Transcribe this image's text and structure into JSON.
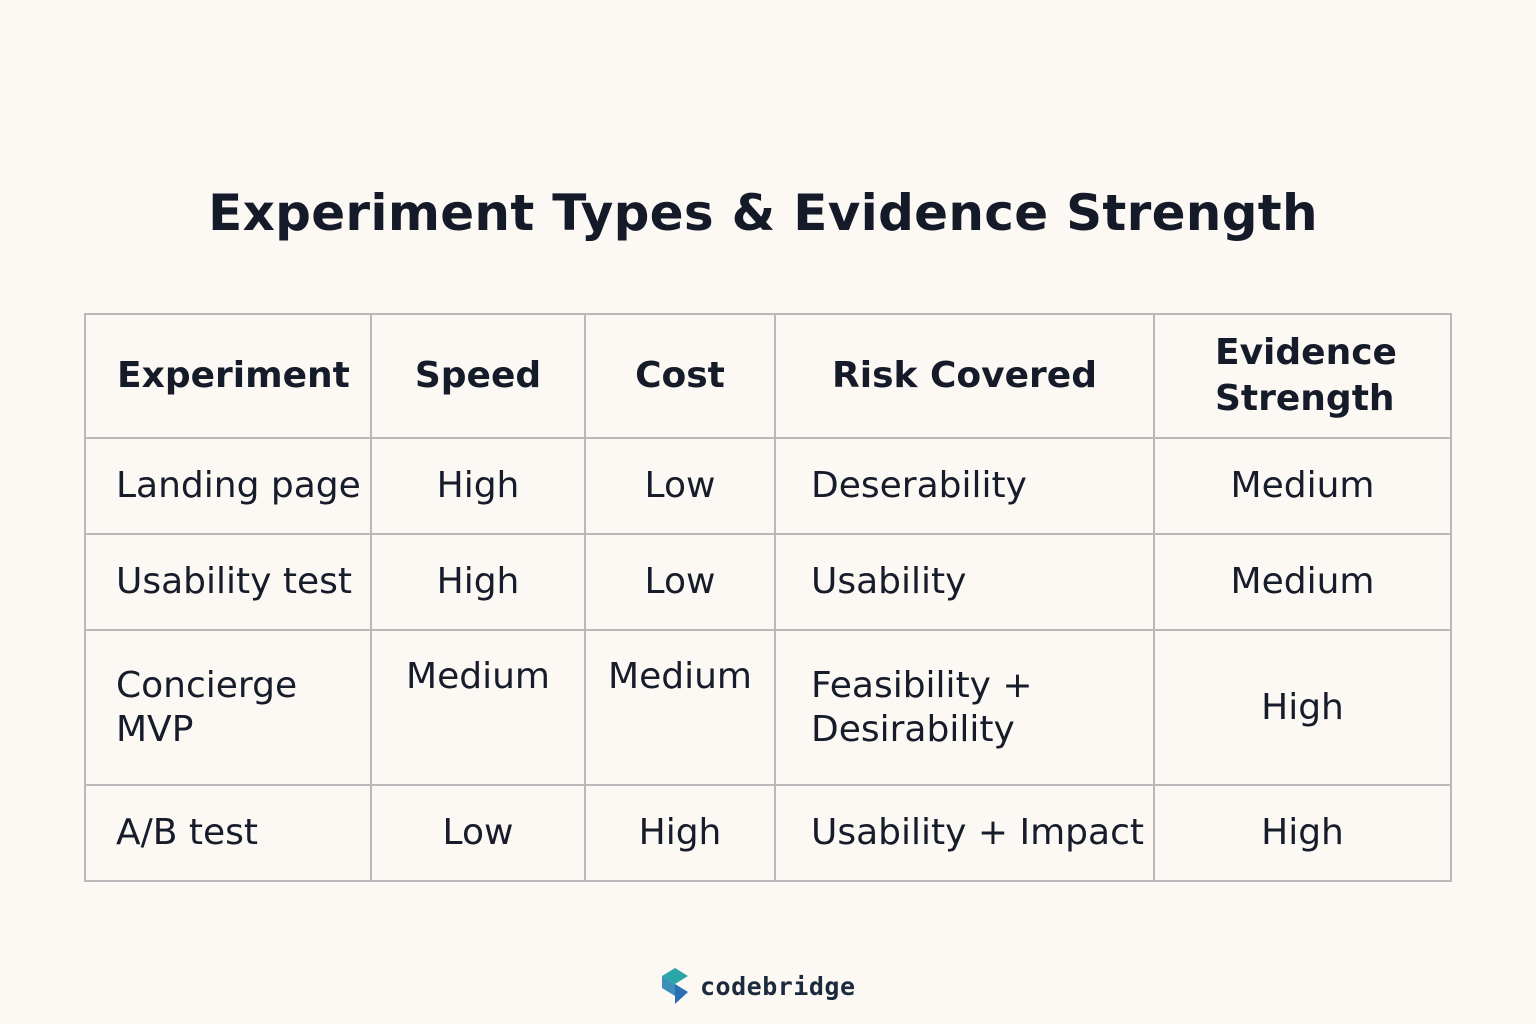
{
  "title": "Experiment Types & Evidence Strength",
  "table": {
    "headers": {
      "experiment": "Experiment",
      "speed": "Speed",
      "cost": "Cost",
      "risk": "Risk Covered",
      "evidence_line1": "Evidence",
      "evidence_line2": "Strength"
    },
    "rows": [
      {
        "experiment_line1": "Landing page",
        "experiment_line2": "",
        "speed": "High",
        "cost": "Low",
        "risk_line1": "Deserability",
        "risk_line2": "",
        "evidence": "Medium"
      },
      {
        "experiment_line1": "Usability test",
        "experiment_line2": "",
        "speed": "High",
        "cost": "Low",
        "risk_line1": "Usability",
        "risk_line2": "",
        "evidence": "Medium"
      },
      {
        "experiment_line1": "Concierge",
        "experiment_line2": "MVP",
        "speed": "Medium",
        "cost": "Medium",
        "risk_line1": "Feasibility +",
        "risk_line2": "Desirability",
        "evidence": "High"
      },
      {
        "experiment_line1": "A/B test",
        "experiment_line2": "",
        "speed": "Low",
        "cost": "High",
        "risk_line1": "Usability + Impact",
        "risk_line2": "",
        "evidence": "High"
      }
    ]
  },
  "brand": {
    "name": "codebridge",
    "icon": "codebridge-logo-icon",
    "colors": {
      "teal": "#2aa6a8",
      "blue": "#2a6fb5",
      "navy": "#1c2a3e"
    }
  },
  "colors": {
    "background": "#fcf8f4",
    "border": "#b9b9b9",
    "text": "#141a28"
  }
}
